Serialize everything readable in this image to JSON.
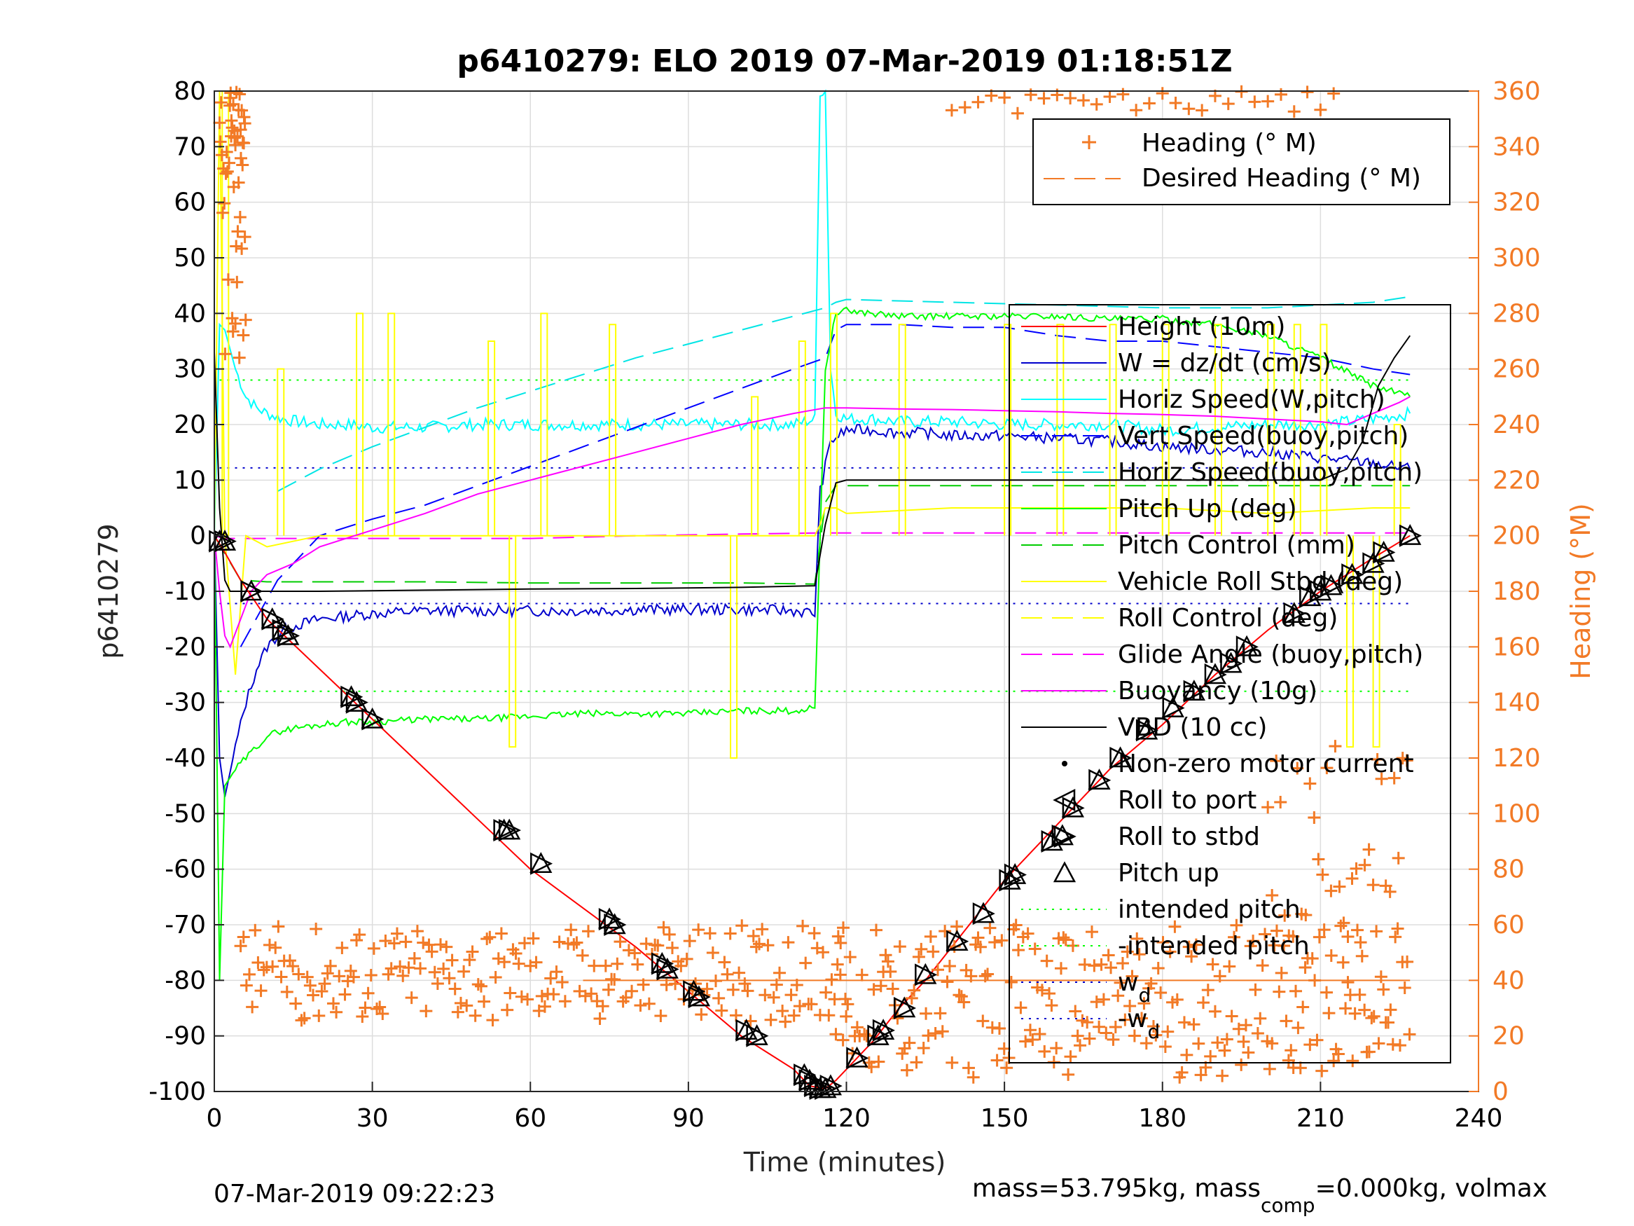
{
  "figure": {
    "title": "p6410279: ELO 2019 07-Mar-2019 01:18:51Z",
    "footer_left": "07-Mar-2019 09:22:23",
    "footer_right_pre": "mass=53.795kg, mass",
    "footer_right_sub": "comp",
    "footer_right_post": "=0.000kg, volmax"
  },
  "colors": {
    "height": "#ff0000",
    "w": "#0000cc",
    "horiz_w": "#00ffff",
    "vert_buoy": "#0000ff",
    "horiz_buoy": "#00e5e5",
    "pitch": "#00ff00",
    "pitch_ctrl": "#00cc00",
    "roll": "#ffff00",
    "glide": "#ff00ff",
    "vbd": "#000000",
    "heading": "#f27a26"
  },
  "chart_data": {
    "type": "line",
    "xlabel": "Time (minutes)",
    "ylabel": "p6410279",
    "y2label": "Heading (°M)",
    "xlim": [
      0,
      240
    ],
    "ylim": [
      -100,
      80
    ],
    "y2lim": [
      0,
      360
    ],
    "xticks": [
      "0",
      "30",
      "60",
      "90",
      "120",
      "150",
      "180",
      "210",
      "240"
    ],
    "yticks": [
      "80",
      "70",
      "60",
      "50",
      "40",
      "30",
      "20",
      "10",
      "0",
      "-10",
      "-20",
      "-30",
      "-40",
      "-50",
      "-60",
      "-70",
      "-80",
      "-90",
      "-100"
    ],
    "y2ticks": [
      "360",
      "340",
      "320",
      "300",
      "280",
      "260",
      "240",
      "220",
      "200",
      "180",
      "160",
      "140",
      "120",
      "100",
      "80",
      "60",
      "40",
      "20",
      "0"
    ],
    "grid": true,
    "legend_top": {
      "placement": "top-right",
      "entries": [
        {
          "label": "Heading (° M)"
        },
        {
          "label": "Desired Heading (° M)"
        }
      ]
    },
    "legend_main": {
      "placement": "right",
      "entries": [
        {
          "label": "Height (10m)"
        },
        {
          "label": "W = dz/dt (cm/s)"
        },
        {
          "label": "Horiz Speed(W,pitch)"
        },
        {
          "label": "Vert Speed(buoy,pitch)"
        },
        {
          "label": "Horiz Speed(buoy,pitch)"
        },
        {
          "label": "Pitch Up (deg)"
        },
        {
          "label": "Pitch Control (mm)"
        },
        {
          "label": "Vehicle Roll Stbd (deg)"
        },
        {
          "label": "Roll Control (deg)"
        },
        {
          "label": "Glide Angle (buoy,pitch)"
        },
        {
          "label": "Buoyancy (10g)"
        },
        {
          "label": "VBD (10 cc)"
        },
        {
          "label": "Non-zero motor current"
        },
        {
          "label": "Roll to port"
        },
        {
          "label": "Roll to stbd"
        },
        {
          "label": "Pitch up"
        },
        {
          "label": "intended pitch"
        },
        {
          "label": "-intended pitch"
        },
        {
          "label": "w",
          "sub": "d"
        },
        {
          "label": "-w",
          "sub": "d"
        }
      ]
    },
    "reference_lines": {
      "intended_pitch": 28,
      "w_d": 12.2,
      "desired_heading": 40
    },
    "series": {
      "height": {
        "x": [
          0,
          2,
          5,
          10,
          20,
          30,
          40,
          50,
          60,
          70,
          80,
          90,
          100,
          105,
          110,
          113,
          116,
          118,
          120,
          125,
          130,
          135,
          140,
          150,
          160,
          170,
          180,
          190,
          200,
          210,
          220,
          227
        ],
        "y": [
          0,
          -3,
          -8,
          -15,
          -24,
          -33,
          -42,
          -51,
          -60,
          -67,
          -74,
          -82,
          -90,
          -93,
          -96,
          -99,
          -99.5,
          -98,
          -96,
          -91,
          -85,
          -80,
          -74,
          -62,
          -52,
          -42,
          -34,
          -25,
          -17,
          -10,
          -4,
          0
        ]
      },
      "w": {
        "x": [
          0,
          1,
          2,
          4,
          6,
          8,
          10,
          13,
          16,
          20,
          25,
          30,
          40,
          50,
          60,
          70,
          80,
          90,
          100,
          110,
          114,
          115,
          117,
          120,
          125,
          130,
          135,
          140,
          150,
          160,
          170,
          180,
          190,
          200,
          210,
          220,
          227
        ],
        "y": [
          0,
          -40,
          -47,
          -38,
          -30,
          -24,
          -20,
          -17,
          -16,
          -15,
          -14.5,
          -14,
          -13.5,
          -13.5,
          -13.5,
          -13.5,
          -13.3,
          -13.3,
          -13.3,
          -13.5,
          -14,
          8,
          17,
          19,
          19,
          18.5,
          18.5,
          18,
          18,
          17.5,
          17,
          16,
          15.5,
          15,
          14,
          13,
          12
        ]
      },
      "horiz_w": {
        "x": [
          0,
          1,
          2,
          4,
          6,
          8,
          10,
          13,
          16,
          20,
          25,
          30,
          40,
          50,
          60,
          70,
          80,
          90,
          100,
          110,
          114,
          115,
          116,
          117,
          118,
          120,
          125,
          130,
          140,
          150,
          160,
          170,
          180,
          190,
          200,
          210,
          220,
          227
        ],
        "y": [
          0,
          38,
          37,
          30,
          25,
          23,
          22,
          21,
          20.5,
          20,
          20,
          19.5,
          19.5,
          20,
          20,
          20,
          20,
          20,
          20,
          20,
          21,
          80,
          80,
          30,
          22,
          21,
          21,
          20.5,
          20.5,
          20,
          20,
          20,
          19,
          19.5,
          20,
          20,
          21,
          22
        ]
      },
      "vert_buoy": {
        "x": [
          5,
          12,
          20,
          30,
          40,
          50,
          60,
          70,
          80,
          90,
          100,
          110,
          116,
          118,
          120,
          130,
          140,
          150,
          160,
          170,
          180,
          190,
          200,
          210,
          220,
          227
        ],
        "y": [
          -20,
          -8,
          0,
          3,
          5.5,
          9,
          12.5,
          16,
          19.5,
          23,
          26.5,
          30,
          32,
          37,
          38,
          38,
          37.5,
          37.5,
          36,
          35,
          35,
          34,
          33,
          32,
          30,
          29
        ]
      },
      "horiz_buoy": {
        "x": [
          12,
          20,
          30,
          40,
          50,
          60,
          70,
          80,
          90,
          100,
          110,
          116,
          118,
          120,
          140,
          160,
          180,
          200,
          220,
          227
        ],
        "y": [
          8,
          12,
          16,
          19.5,
          23,
          26,
          29,
          32,
          34.5,
          37,
          39.5,
          41,
          42,
          42.5,
          42,
          41.5,
          41,
          41,
          42,
          43
        ]
      },
      "pitch": {
        "x": [
          0,
          1,
          2,
          4,
          6,
          8,
          10,
          13,
          16,
          20,
          25,
          30,
          40,
          50,
          60,
          70,
          80,
          90,
          100,
          110,
          114,
          115,
          116,
          118,
          120,
          125,
          130,
          140,
          150,
          160,
          170,
          180,
          190,
          200,
          210,
          220,
          227
        ],
        "y": [
          0,
          -80,
          -45,
          -42,
          -40,
          -38,
          -36,
          -35,
          -34.5,
          -34,
          -33.5,
          -33.5,
          -33,
          -33,
          -32.5,
          -32,
          -32,
          -32,
          -31.5,
          -31.5,
          -31,
          0,
          30,
          40,
          40.5,
          40,
          39.5,
          39.5,
          39.5,
          39.5,
          39,
          39,
          38,
          36,
          32,
          27,
          25
        ]
      },
      "pitch_ctrl": {
        "x": [
          0,
          5,
          10,
          20,
          40,
          60,
          80,
          100,
          114,
          116,
          118,
          120,
          150,
          180,
          210,
          227
        ],
        "y": [
          0,
          -8,
          -8.3,
          -8.3,
          -8.3,
          -8.5,
          -8.5,
          -8.5,
          -8.7,
          6,
          9,
          9,
          9,
          9,
          9,
          9
        ]
      },
      "roll": {
        "x": [
          0,
          1,
          2,
          4,
          6,
          10,
          20,
          30,
          40,
          50,
          60,
          70,
          80,
          90,
          100,
          110,
          114,
          115,
          116,
          118,
          120,
          140,
          160,
          180,
          200,
          220,
          227
        ],
        "y": [
          0,
          80,
          0,
          -25,
          0,
          -2,
          0,
          0,
          0,
          0,
          0,
          0,
          0,
          0,
          0,
          0,
          0,
          2,
          5,
          5,
          4,
          5,
          5,
          5,
          4,
          5,
          5
        ]
      },
      "roll_spikes": {
        "x": [
          1.5,
          12,
          27,
          33,
          52,
          56,
          62,
          75,
          98,
          102,
          111,
          117,
          130,
          150,
          160,
          170,
          180,
          190,
          200,
          205,
          210,
          215,
          220,
          224
        ],
        "y": [
          80,
          30,
          40,
          40,
          35,
          -38,
          40,
          38,
          -40,
          25,
          35,
          40,
          38,
          38,
          38,
          38,
          38,
          38,
          38,
          38,
          38,
          -38,
          -38,
          20
        ]
      },
      "glide": {
        "x": [
          0,
          2,
          5,
          10,
          20,
          40,
          60,
          80,
          100,
          116,
          118,
          120,
          140,
          160,
          180,
          200,
          220,
          227
        ],
        "y": [
          0,
          -0.5,
          -0.5,
          -0.5,
          -0.5,
          -0.5,
          -0.5,
          0,
          0.3,
          0.5,
          0.5,
          0.5,
          0.5,
          0.5,
          0.5,
          0.5,
          0.5,
          0.5
        ]
      },
      "buoyancy": {
        "x": [
          0,
          1,
          2,
          3,
          5,
          7,
          10,
          15,
          20,
          30,
          40,
          50,
          60,
          70,
          80,
          90,
          100,
          110,
          116,
          120,
          130,
          140,
          150,
          160,
          170,
          180,
          190,
          200,
          210,
          215,
          220,
          225,
          227
        ],
        "y": [
          0,
          -10,
          -18,
          -20,
          -15,
          -10,
          -7,
          -5,
          -2,
          1,
          4,
          7.5,
          10,
          12.5,
          15,
          17.5,
          20,
          22,
          23,
          23,
          22.8,
          22.7,
          22.5,
          22.3,
          22,
          21.8,
          21.5,
          21,
          20.5,
          20,
          22,
          24,
          25
        ]
      },
      "vbd": {
        "x": [
          0,
          1,
          2,
          3,
          5,
          20,
          40,
          60,
          80,
          100,
          114,
          116,
          118,
          120,
          150,
          180,
          210,
          215,
          218,
          221,
          224,
          227
        ],
        "y": [
          33,
          5,
          -8,
          -10,
          -10,
          -10,
          -9.8,
          -9.6,
          -9.5,
          -9.3,
          -9,
          2,
          9.5,
          10,
          10,
          10,
          10,
          12,
          17,
          27,
          32,
          36
        ]
      },
      "events": {
        "x": [
          1,
          2,
          7,
          11,
          13,
          14,
          26,
          27,
          30,
          55,
          56,
          62,
          75,
          76,
          85,
          86,
          91,
          92,
          101,
          103,
          112,
          113,
          114,
          115,
          116,
          117,
          122,
          126,
          127,
          131,
          135,
          141,
          146,
          151,
          152,
          159,
          161,
          163,
          168,
          172,
          177,
          182,
          186,
          190,
          193,
          196,
          205,
          208,
          210,
          212,
          216,
          220,
          222,
          227
        ],
        "y": [
          -1,
          -1,
          -10,
          -15,
          -17,
          -18,
          -29,
          -30,
          -33,
          -53,
          -53,
          -59,
          -69,
          -70,
          -77,
          -78,
          -82,
          -83,
          -89,
          -90,
          -97,
          -98,
          -99,
          -99.5,
          -99.5,
          -99,
          -94,
          -90,
          -89,
          -85,
          -79,
          -73,
          -68,
          -62,
          -61,
          -55,
          -54,
          -49,
          -44,
          -40,
          -35,
          -31,
          -28,
          -25,
          -23,
          -20,
          -14,
          -11,
          -10,
          -9,
          -7,
          -5,
          -3,
          0
        ]
      },
      "heading_desired": 40
    }
  }
}
